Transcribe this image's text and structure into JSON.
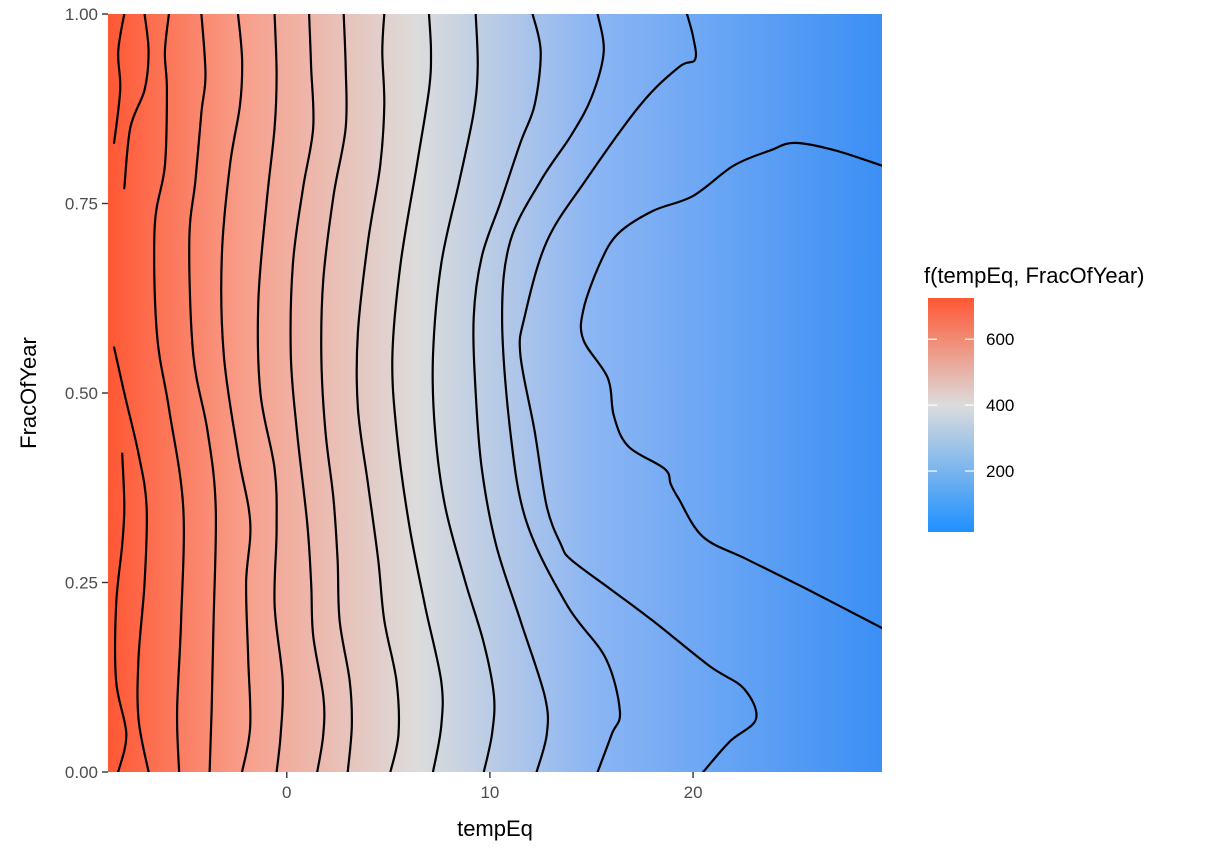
{
  "chart_data": {
    "type": "heatmap",
    "title": "",
    "xlabel": "tempEq",
    "ylabel": "FracOfYear",
    "xlim": [
      -8.8,
      29.3
    ],
    "ylim": [
      0,
      1
    ],
    "x_ticks": [
      0,
      10,
      20
    ],
    "x_tick_labels": [
      "0",
      "10",
      "20"
    ],
    "y_ticks": [
      0,
      0.25,
      0.5,
      0.75,
      1
    ],
    "y_tick_labels": [
      "0.00",
      "0.25",
      "0.50",
      "0.75",
      "1.00"
    ],
    "grid": false,
    "legend": {
      "title": "f(tempEq, FracOfYear)",
      "placement": "right",
      "range": [
        15,
        725
      ],
      "breaks": [
        200,
        400,
        600
      ],
      "labels": [
        "200",
        "400",
        "600"
      ],
      "colors": {
        "low": "#1E90FF",
        "mid": "#DCDCDC",
        "high": "#FF5733"
      },
      "midpoint": 400
    },
    "contour_color": "#000000",
    "contours": [
      [
        [
          -8.5,
          0.83
        ],
        [
          -8.2,
          0.9
        ],
        [
          -8.3,
          0.95
        ],
        [
          -8.0,
          1.0
        ]
      ],
      [
        [
          -8.3,
          0.0
        ],
        [
          -7.9,
          0.05
        ],
        [
          -8.4,
          0.12
        ],
        [
          -8.4,
          0.22
        ],
        [
          -8.1,
          0.3
        ],
        [
          -8.0,
          0.35
        ],
        [
          -8.1,
          0.42
        ]
      ],
      [
        [
          -8.5,
          0.56
        ],
        [
          -8.0,
          0.5
        ],
        [
          -7.3,
          0.42
        ],
        [
          -6.9,
          0.35
        ],
        [
          -7.0,
          0.25
        ],
        [
          -7.3,
          0.15
        ],
        [
          -7.3,
          0.07
        ],
        [
          -6.8,
          0.0
        ]
      ],
      [
        [
          -8.0,
          0.77
        ],
        [
          -7.7,
          0.85
        ],
        [
          -7.0,
          0.9
        ],
        [
          -6.8,
          0.95
        ],
        [
          -7.0,
          1.0
        ]
      ],
      [
        [
          -5.3,
          0.0
        ],
        [
          -5.4,
          0.08
        ],
        [
          -5.2,
          0.2
        ],
        [
          -5.1,
          0.35
        ],
        [
          -5.8,
          0.48
        ],
        [
          -6.4,
          0.58
        ],
        [
          -6.5,
          0.72
        ],
        [
          -6.0,
          0.8
        ],
        [
          -5.9,
          0.9
        ],
        [
          -6.0,
          0.95
        ],
        [
          -5.8,
          1.0
        ]
      ],
      [
        [
          -3.8,
          0.0
        ],
        [
          -3.7,
          0.08
        ],
        [
          -3.6,
          0.2
        ],
        [
          -3.5,
          0.35
        ],
        [
          -3.9,
          0.45
        ],
        [
          -4.6,
          0.55
        ],
        [
          -4.8,
          0.7
        ],
        [
          -4.5,
          0.78
        ],
        [
          -4.2,
          0.87
        ],
        [
          -4.0,
          0.92
        ],
        [
          -4.2,
          1.0
        ]
      ],
      [
        [
          -2.2,
          0.0
        ],
        [
          -1.8,
          0.06
        ],
        [
          -1.9,
          0.15
        ],
        [
          -2.0,
          0.25
        ],
        [
          -1.8,
          0.33
        ],
        [
          -2.4,
          0.42
        ],
        [
          -3.1,
          0.55
        ],
        [
          -3.2,
          0.68
        ],
        [
          -2.8,
          0.8
        ],
        [
          -2.3,
          0.88
        ],
        [
          -2.2,
          0.94
        ],
        [
          -2.4,
          1.0
        ]
      ],
      [
        [
          -0.5,
          0.0
        ],
        [
          -0.3,
          0.05
        ],
        [
          -0.2,
          0.12
        ],
        [
          -0.6,
          0.22
        ],
        [
          -0.5,
          0.32
        ],
        [
          -0.6,
          0.4
        ],
        [
          -1.3,
          0.5
        ],
        [
          -1.4,
          0.62
        ],
        [
          -1.0,
          0.75
        ],
        [
          -0.6,
          0.85
        ],
        [
          -0.5,
          0.92
        ],
        [
          -0.6,
          1.0
        ]
      ],
      [
        [
          1.5,
          0.0
        ],
        [
          1.8,
          0.05
        ],
        [
          1.8,
          0.1
        ],
        [
          1.3,
          0.18
        ],
        [
          1.2,
          0.25
        ],
        [
          1.0,
          0.33
        ],
        [
          0.5,
          0.45
        ],
        [
          0.2,
          0.55
        ],
        [
          0.3,
          0.67
        ],
        [
          0.8,
          0.77
        ],
        [
          1.3,
          0.85
        ],
        [
          1.2,
          0.93
        ],
        [
          1.1,
          1.0
        ]
      ],
      [
        [
          3.0,
          0.0
        ],
        [
          3.2,
          0.06
        ],
        [
          3.1,
          0.12
        ],
        [
          2.6,
          0.2
        ],
        [
          2.5,
          0.28
        ],
        [
          2.3,
          0.36
        ],
        [
          1.9,
          0.45
        ],
        [
          1.7,
          0.55
        ],
        [
          1.8,
          0.65
        ],
        [
          2.3,
          0.76
        ],
        [
          2.9,
          0.85
        ],
        [
          2.9,
          0.93
        ],
        [
          2.8,
          1.0
        ]
      ],
      [
        [
          5.1,
          0.0
        ],
        [
          5.5,
          0.05
        ],
        [
          5.4,
          0.12
        ],
        [
          4.8,
          0.2
        ],
        [
          4.5,
          0.28
        ],
        [
          4.0,
          0.38
        ],
        [
          3.5,
          0.48
        ],
        [
          3.5,
          0.58
        ],
        [
          4.0,
          0.7
        ],
        [
          4.6,
          0.8
        ],
        [
          4.8,
          0.88
        ],
        [
          4.7,
          0.95
        ],
        [
          4.8,
          1.0
        ]
      ],
      [
        [
          7.2,
          0.0
        ],
        [
          7.6,
          0.06
        ],
        [
          7.6,
          0.12
        ],
        [
          6.8,
          0.22
        ],
        [
          6.0,
          0.33
        ],
        [
          5.4,
          0.45
        ],
        [
          5.2,
          0.55
        ],
        [
          5.6,
          0.67
        ],
        [
          6.4,
          0.8
        ],
        [
          7.0,
          0.9
        ],
        [
          7.1,
          0.95
        ],
        [
          7.0,
          1.0
        ]
      ],
      [
        [
          9.7,
          0.0
        ],
        [
          10.1,
          0.05
        ],
        [
          10.2,
          0.1
        ],
        [
          9.7,
          0.17
        ],
        [
          8.8,
          0.25
        ],
        [
          7.8,
          0.35
        ],
        [
          7.3,
          0.45
        ],
        [
          7.2,
          0.55
        ],
        [
          7.6,
          0.67
        ],
        [
          8.5,
          0.78
        ],
        [
          9.2,
          0.87
        ],
        [
          9.4,
          0.93
        ],
        [
          9.3,
          1.0
        ]
      ],
      [
        [
          12.3,
          0.0
        ],
        [
          12.8,
          0.05
        ],
        [
          12.7,
          0.1
        ],
        [
          11.5,
          0.2
        ],
        [
          10.3,
          0.3
        ],
        [
          9.6,
          0.4
        ],
        [
          9.3,
          0.5
        ],
        [
          9.2,
          0.6
        ],
        [
          9.6,
          0.68
        ],
        [
          10.5,
          0.75
        ],
        [
          11.5,
          0.83
        ],
        [
          12.2,
          0.88
        ],
        [
          12.5,
          0.95
        ],
        [
          12.1,
          1.0
        ]
      ],
      [
        [
          15.3,
          0.0
        ],
        [
          16.0,
          0.05
        ],
        [
          16.4,
          0.08
        ],
        [
          15.7,
          0.15
        ],
        [
          13.8,
          0.22
        ],
        [
          11.8,
          0.33
        ],
        [
          11.0,
          0.45
        ],
        [
          10.6,
          0.6
        ],
        [
          11.0,
          0.7
        ],
        [
          12.5,
          0.78
        ],
        [
          14.0,
          0.84
        ],
        [
          15.0,
          0.89
        ],
        [
          15.6,
          0.95
        ],
        [
          15.3,
          1.0
        ]
      ],
      [
        [
          20.5,
          0.0
        ],
        [
          21.8,
          0.04
        ],
        [
          23.1,
          0.07
        ],
        [
          22.5,
          0.11
        ],
        [
          20.8,
          0.14
        ],
        [
          18.0,
          0.2
        ],
        [
          16.0,
          0.24
        ],
        [
          14.0,
          0.28
        ],
        [
          13.5,
          0.3
        ],
        [
          12.8,
          0.35
        ],
        [
          12.2,
          0.45
        ],
        [
          11.5,
          0.55
        ],
        [
          11.7,
          0.6
        ],
        [
          12.8,
          0.7
        ],
        [
          14.7,
          0.78
        ],
        [
          17.4,
          0.88
        ],
        [
          19.3,
          0.93
        ],
        [
          20.1,
          0.94
        ],
        [
          20.0,
          0.97
        ],
        [
          19.7,
          1.0
        ]
      ],
      [
        [
          29.3,
          0.19
        ],
        [
          25.7,
          0.24
        ],
        [
          22.7,
          0.28
        ],
        [
          20.5,
          0.31
        ],
        [
          19.3,
          0.36
        ],
        [
          18.9,
          0.38
        ],
        [
          18.6,
          0.4
        ],
        [
          16.8,
          0.43
        ],
        [
          16.1,
          0.47
        ],
        [
          15.8,
          0.52
        ],
        [
          14.6,
          0.57
        ],
        [
          14.6,
          0.61
        ],
        [
          15.4,
          0.67
        ],
        [
          16.3,
          0.71
        ],
        [
          18.0,
          0.74
        ],
        [
          20.0,
          0.76
        ],
        [
          22.0,
          0.8
        ],
        [
          23.8,
          0.82
        ],
        [
          25.0,
          0.83
        ],
        [
          27.0,
          0.82
        ],
        [
          29.3,
          0.8
        ]
      ]
    ]
  }
}
